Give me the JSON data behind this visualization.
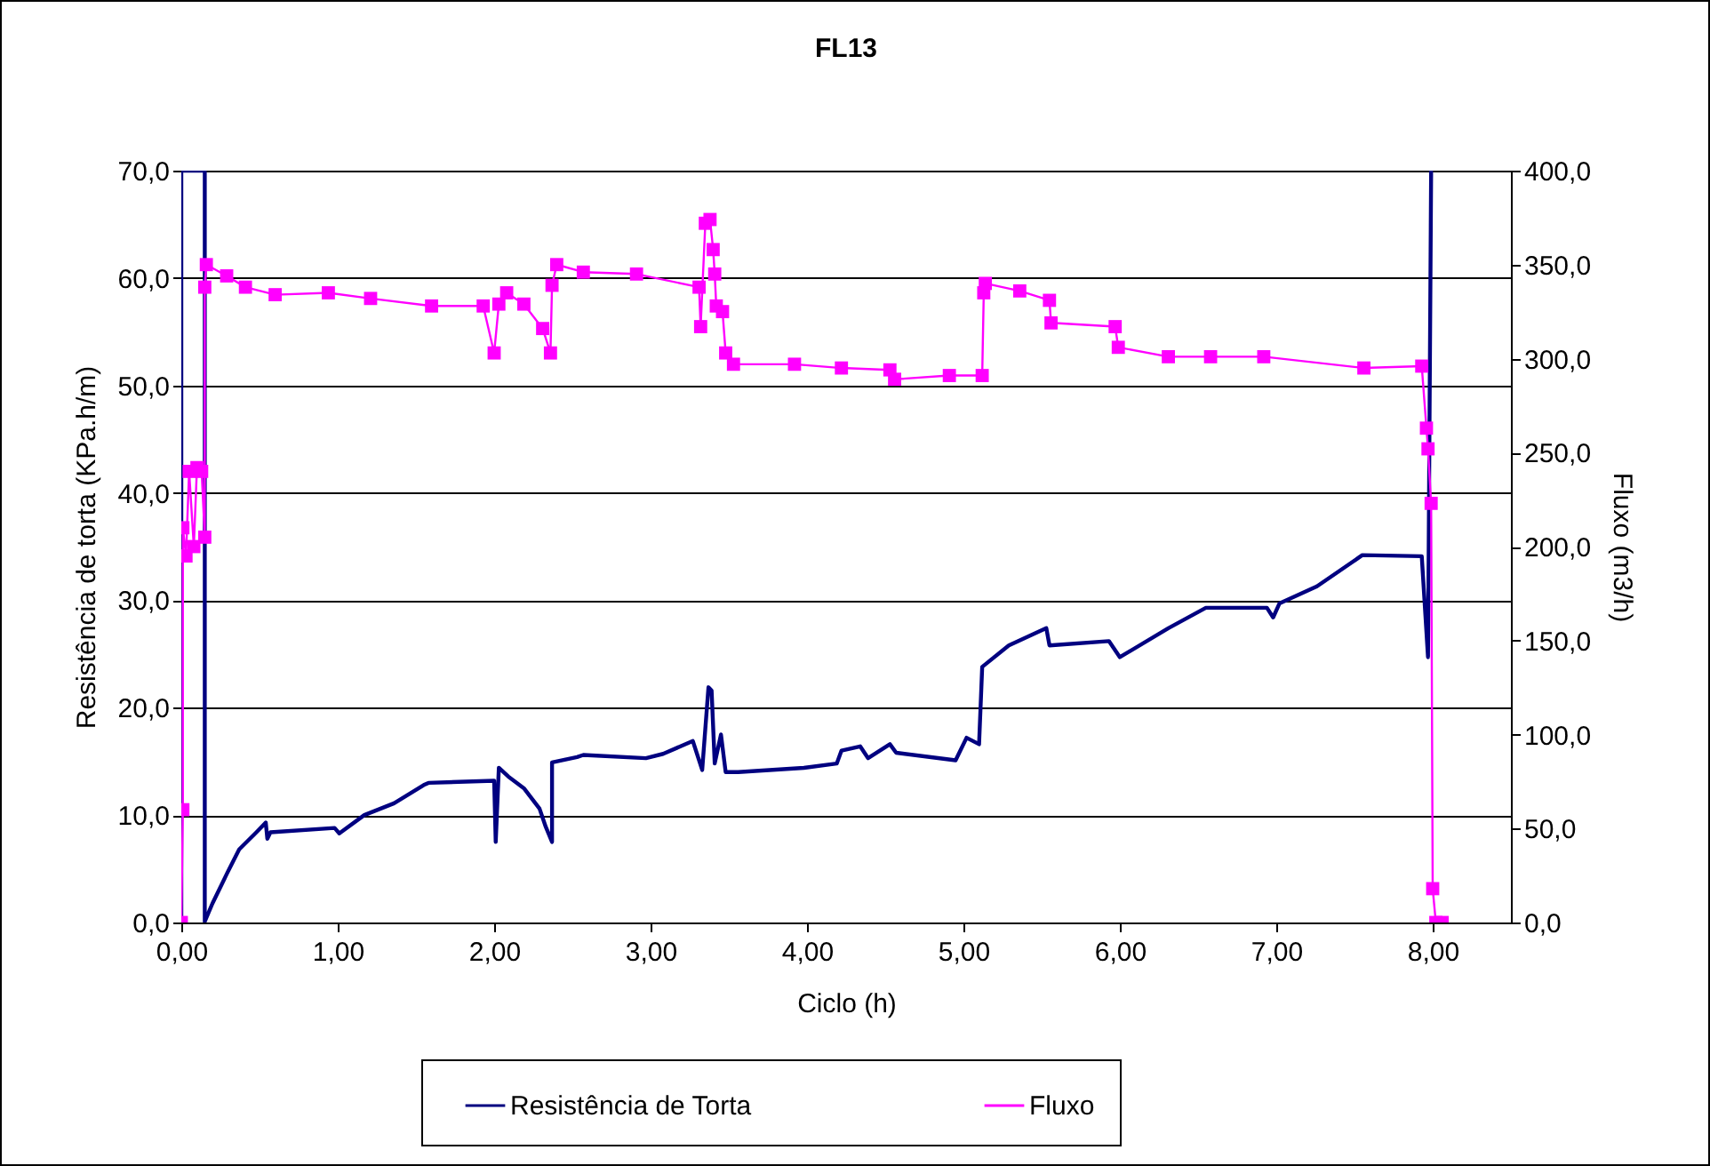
{
  "chart_data": {
    "type": "line",
    "title": "FL13",
    "xlabel": "Ciclo (h)",
    "ylabel": "Resistência de torta (KPa.h/m)",
    "y2label": "Fluxo (m3/h)",
    "xlim": [
      0,
      8.5
    ],
    "xticks": [
      {
        "value": 0,
        "label": "0,00"
      },
      {
        "value": 1,
        "label": "1,00"
      },
      {
        "value": 2,
        "label": "2,00"
      },
      {
        "value": 3,
        "label": "3,00"
      },
      {
        "value": 4,
        "label": "4,00"
      },
      {
        "value": 5,
        "label": "5,00"
      },
      {
        "value": 6,
        "label": "6,00"
      },
      {
        "value": 7,
        "label": "7,00"
      },
      {
        "value": 8,
        "label": "8,00"
      }
    ],
    "ylim": [
      0,
      70
    ],
    "yticks": [
      {
        "value": 0,
        "label": "0,0"
      },
      {
        "value": 10,
        "label": "10,0"
      },
      {
        "value": 20,
        "label": "20,0"
      },
      {
        "value": 30,
        "label": "30,0"
      },
      {
        "value": 40,
        "label": "40,0"
      },
      {
        "value": 50,
        "label": "50,0"
      },
      {
        "value": 60,
        "label": "60,0"
      },
      {
        "value": 70,
        "label": "70,0"
      }
    ],
    "y2lim": [
      0,
      400
    ],
    "y2ticks": [
      {
        "value": 0,
        "label": "0,0"
      },
      {
        "value": 50,
        "label": "50,0"
      },
      {
        "value": 100,
        "label": "100,0"
      },
      {
        "value": 150,
        "label": "150,0"
      },
      {
        "value": 200,
        "label": "200,0"
      },
      {
        "value": 250,
        "label": "250,0"
      },
      {
        "value": 300,
        "label": "300,0"
      },
      {
        "value": 350,
        "label": "350,0"
      },
      {
        "value": 400,
        "label": "400,0"
      }
    ],
    "grid": "y",
    "legend": "bottom",
    "line_style": "solid",
    "series": [
      {
        "name": "Resistência de Torta",
        "color": "#000080",
        "marker": "none",
        "x": [
          0,
          0,
          0.15,
          0.15,
          0.2,
          0.29,
          0.37,
          0.48,
          0.54,
          0.55,
          0.57,
          0.98,
          1.01,
          1.17,
          1.36,
          1.55,
          1.58,
          2.0,
          2.01,
          2.03,
          2.09,
          2.19,
          2.29,
          2.33,
          2.37,
          2.37,
          2.53,
          2.57,
          2.97,
          3.08,
          3.27,
          3.33,
          3.37,
          3.39,
          3.41,
          3.45,
          3.48,
          3.56,
          3.98,
          4.19,
          4.22,
          4.34,
          4.39,
          4.53,
          4.57,
          4.95,
          5.02,
          5.1,
          5.12,
          5.29,
          5.53,
          5.55,
          5.93,
          6.0,
          6.31,
          6.55,
          6.94,
          6.98,
          7.02,
          7.26,
          7.55,
          7.93,
          7.97,
          7.99
        ],
        "values": [
          0,
          70,
          70,
          0.1,
          1.8,
          4.5,
          6.8,
          8.4,
          9.3,
          7.8,
          8.4,
          8.8,
          8.3,
          10.0,
          11.1,
          12.8,
          13.0,
          13.2,
          7.5,
          14.4,
          13.6,
          12.5,
          10.6,
          8.9,
          7.5,
          14.9,
          15.4,
          15.6,
          15.3,
          15.7,
          16.9,
          14.2,
          21.9,
          21.6,
          14.8,
          17.5,
          14.0,
          14.0,
          14.4,
          14.8,
          16.0,
          16.4,
          15.3,
          16.6,
          15.8,
          15.1,
          17.2,
          16.6,
          23.8,
          25.8,
          27.4,
          25.8,
          26.2,
          24.7,
          27.4,
          29.3,
          29.3,
          28.4,
          29.7,
          31.3,
          34.2,
          34.1,
          24.7,
          70
        ]
      },
      {
        "name": "Fluxo",
        "color": "#ff00ff",
        "marker": "square",
        "axis": "y2",
        "x": [
          0,
          0.01,
          0.01,
          0.03,
          0.05,
          0.08,
          0.1,
          0.13,
          0.15,
          0.15,
          0.16,
          0.29,
          0.41,
          0.6,
          0.94,
          1.21,
          1.6,
          1.93,
          2.0,
          2.03,
          2.08,
          2.19,
          2.31,
          2.36,
          2.37,
          2.4,
          2.57,
          2.91,
          3.31,
          3.32,
          3.35,
          3.38,
          3.4,
          3.41,
          3.42,
          3.46,
          3.48,
          3.53,
          3.92,
          4.22,
          4.53,
          4.56,
          4.91,
          5.12,
          5.13,
          5.14,
          5.36,
          5.55,
          5.56,
          5.97,
          5.99,
          6.31,
          6.58,
          6.92,
          7.56,
          7.93,
          7.96,
          7.97,
          7.99,
          8.0,
          8.02,
          8.06
        ],
        "values": [
          0,
          60,
          210,
          195,
          240,
          200,
          242,
          240,
          205,
          338,
          350,
          344,
          338,
          334,
          335,
          332,
          328,
          328,
          303,
          329,
          335,
          329,
          316,
          303,
          339,
          350,
          346,
          345,
          338,
          317,
          372,
          374,
          358,
          345,
          328,
          325,
          303,
          297,
          297,
          295,
          294,
          289,
          291,
          291,
          335,
          340,
          336,
          331,
          319,
          317,
          306,
          301,
          301,
          301,
          295,
          296,
          263,
          252,
          223,
          18,
          0,
          0
        ]
      }
    ]
  }
}
